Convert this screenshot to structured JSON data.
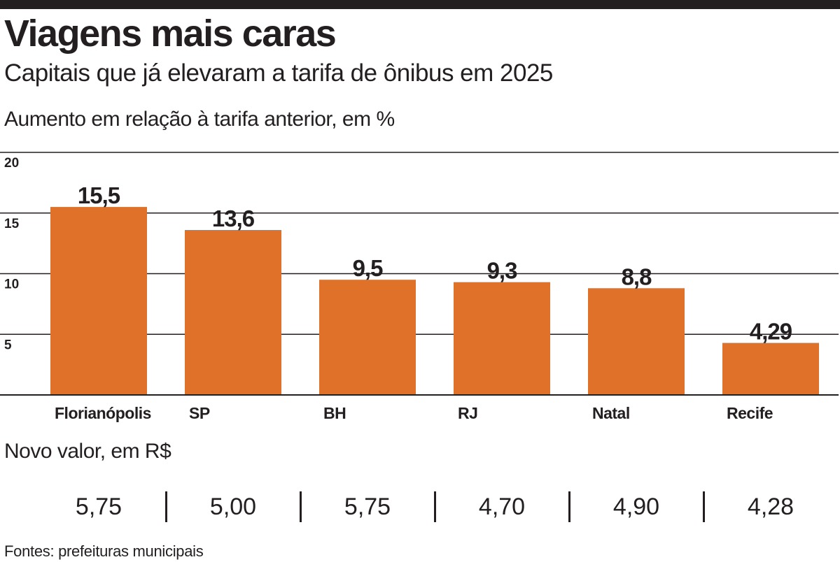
{
  "header": {
    "title": "Viagens mais caras",
    "subtitle": "Capitais que já elevaram a tarifa de ônibus em 2025"
  },
  "chart_data": {
    "type": "bar",
    "title": "Viagens mais caras",
    "subtitle": "Capitais que já elevaram a tarifa de ônibus em 2025",
    "ylabel": "Aumento em relação à tarifa anterior, em %",
    "xlabel": "",
    "categories": [
      "Florianópolis",
      "SP",
      "BH",
      "RJ",
      "Natal",
      "Recife"
    ],
    "values": [
      15.5,
      13.6,
      9.5,
      9.3,
      8.8,
      4.29
    ],
    "value_labels": [
      "15,5",
      "13,6",
      "9,5",
      "9,3",
      "8,8",
      "4,29"
    ],
    "ylim": [
      0,
      20
    ],
    "yticks": [
      5,
      10,
      15,
      20
    ],
    "grid": true,
    "legend": "none",
    "colors": {
      "bar": "#e07128",
      "grid": "#231f20",
      "text": "#231f20"
    }
  },
  "prices": {
    "label": "Novo valor, em R$",
    "values": [
      "5,75",
      "5,00",
      "5,75",
      "4,70",
      "4,90",
      "4,28"
    ]
  },
  "footer": {
    "source": "Fontes: prefeituras municipais"
  }
}
